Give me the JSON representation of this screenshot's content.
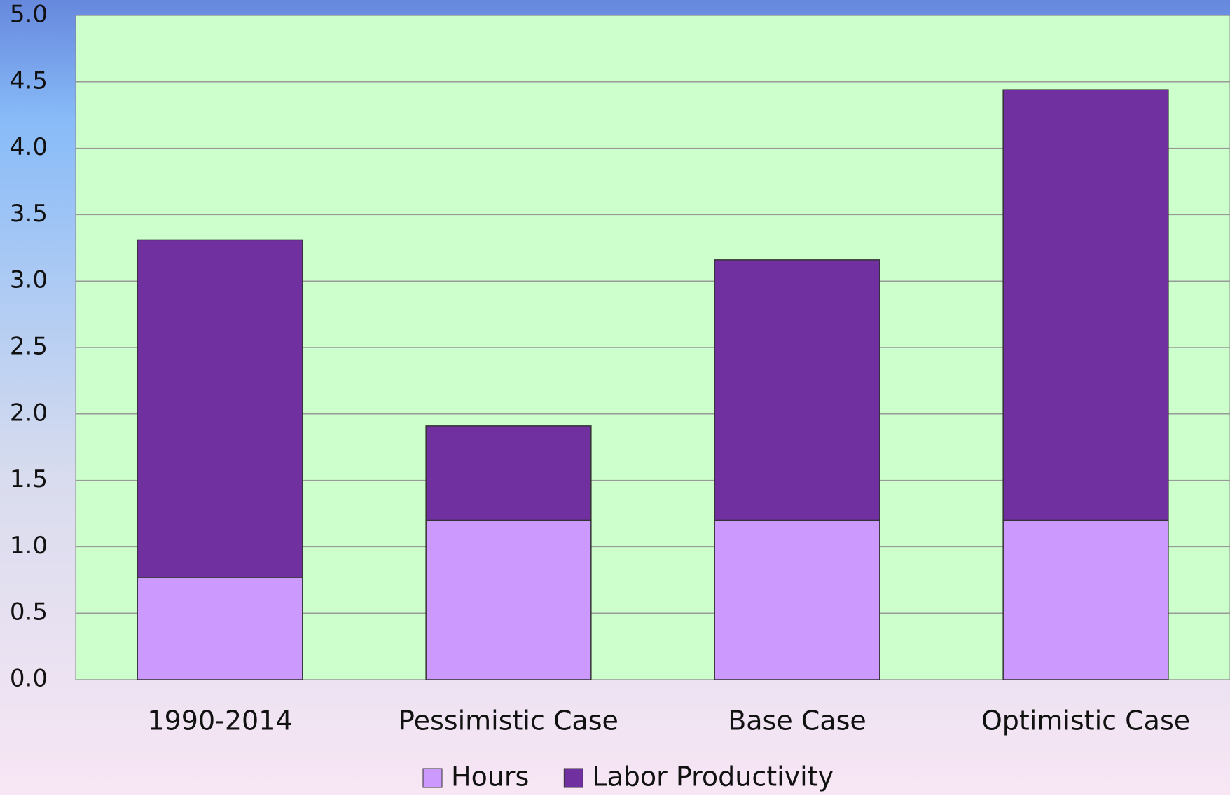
{
  "chart_data": {
    "type": "stacked_bar",
    "categories": [
      "1990-2014",
      "Pessimistic Case",
      "Base Case",
      "Optimistic Case"
    ],
    "series": [
      {
        "name": "Hours",
        "color": "#cc99ff",
        "values": [
          0.77,
          1.2,
          1.2,
          1.2
        ]
      },
      {
        "name": "Labor Productivity",
        "color": "#7030a0",
        "values": [
          2.54,
          0.71,
          1.96,
          3.24
        ]
      }
    ],
    "ylim": [
      0,
      5
    ],
    "yticks": [
      {
        "value": 0,
        "label": "0.0"
      },
      0.5,
      {
        "value": 1,
        "label": "1.0"
      },
      1.5,
      {
        "value": 2,
        "label": "2.0"
      },
      2.5,
      {
        "value": 3,
        "label": "3.0"
      },
      3.5,
      {
        "value": 4,
        "label": "4.0"
      },
      4.5,
      {
        "value": 5,
        "label": "5.0"
      }
    ],
    "grid": true,
    "legend": "bottom"
  }
}
